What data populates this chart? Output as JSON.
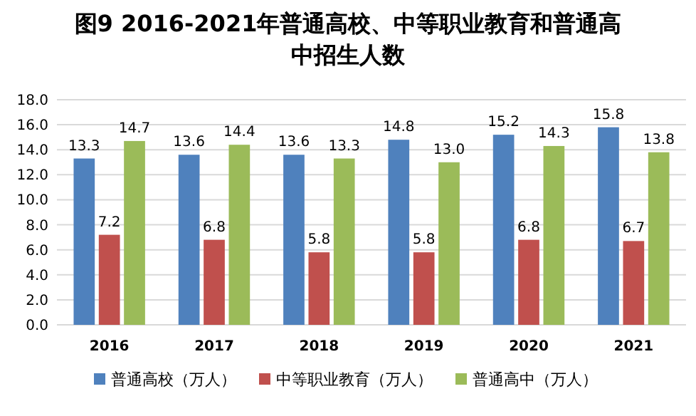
{
  "chart_data": {
    "type": "bar",
    "title": "图9  2016-2021年普通高校、中等职业教育和普通高中招生人数",
    "categories": [
      "2016",
      "2017",
      "2018",
      "2019",
      "2020",
      "2021"
    ],
    "series": [
      {
        "name": "普通高校（万人）",
        "color": "#4f81bd",
        "values": [
          13.3,
          13.6,
          13.6,
          14.8,
          15.2,
          15.8
        ],
        "value_labels": [
          "13.3",
          "13.6",
          "13.6",
          "14.8",
          "15.2",
          "15.8"
        ]
      },
      {
        "name": "中等职业教育（万人）",
        "color": "#c0504d",
        "values": [
          7.2,
          6.8,
          5.8,
          5.8,
          6.8,
          6.7
        ],
        "value_labels": [
          "7.2",
          "6.8",
          "5.8",
          "5.8",
          "6.8",
          "6.7"
        ]
      },
      {
        "name": "普通高中（万人）",
        "color": "#9bbb59",
        "values": [
          14.7,
          14.4,
          13.3,
          13.0,
          14.3,
          13.8
        ],
        "value_labels": [
          "14.7",
          "14.4",
          "13.3",
          "13.0",
          "14.3",
          "13.8"
        ]
      }
    ],
    "ylim": [
      0,
      18
    ],
    "yticks": [
      {
        "value": 0,
        "label": "0.0"
      },
      {
        "value": 2,
        "label": "2.0"
      },
      {
        "value": 4,
        "label": "4.0"
      },
      {
        "value": 6,
        "label": "6.0"
      },
      {
        "value": 8,
        "label": "8.0"
      },
      {
        "value": 10,
        "label": "10.0"
      },
      {
        "value": 12,
        "label": "12.0"
      },
      {
        "value": 14,
        "label": "14.0"
      },
      {
        "value": 16,
        "label": "16.0"
      },
      {
        "value": 18,
        "label": "18.0"
      }
    ],
    "grid": "y",
    "legend": "bottom"
  }
}
